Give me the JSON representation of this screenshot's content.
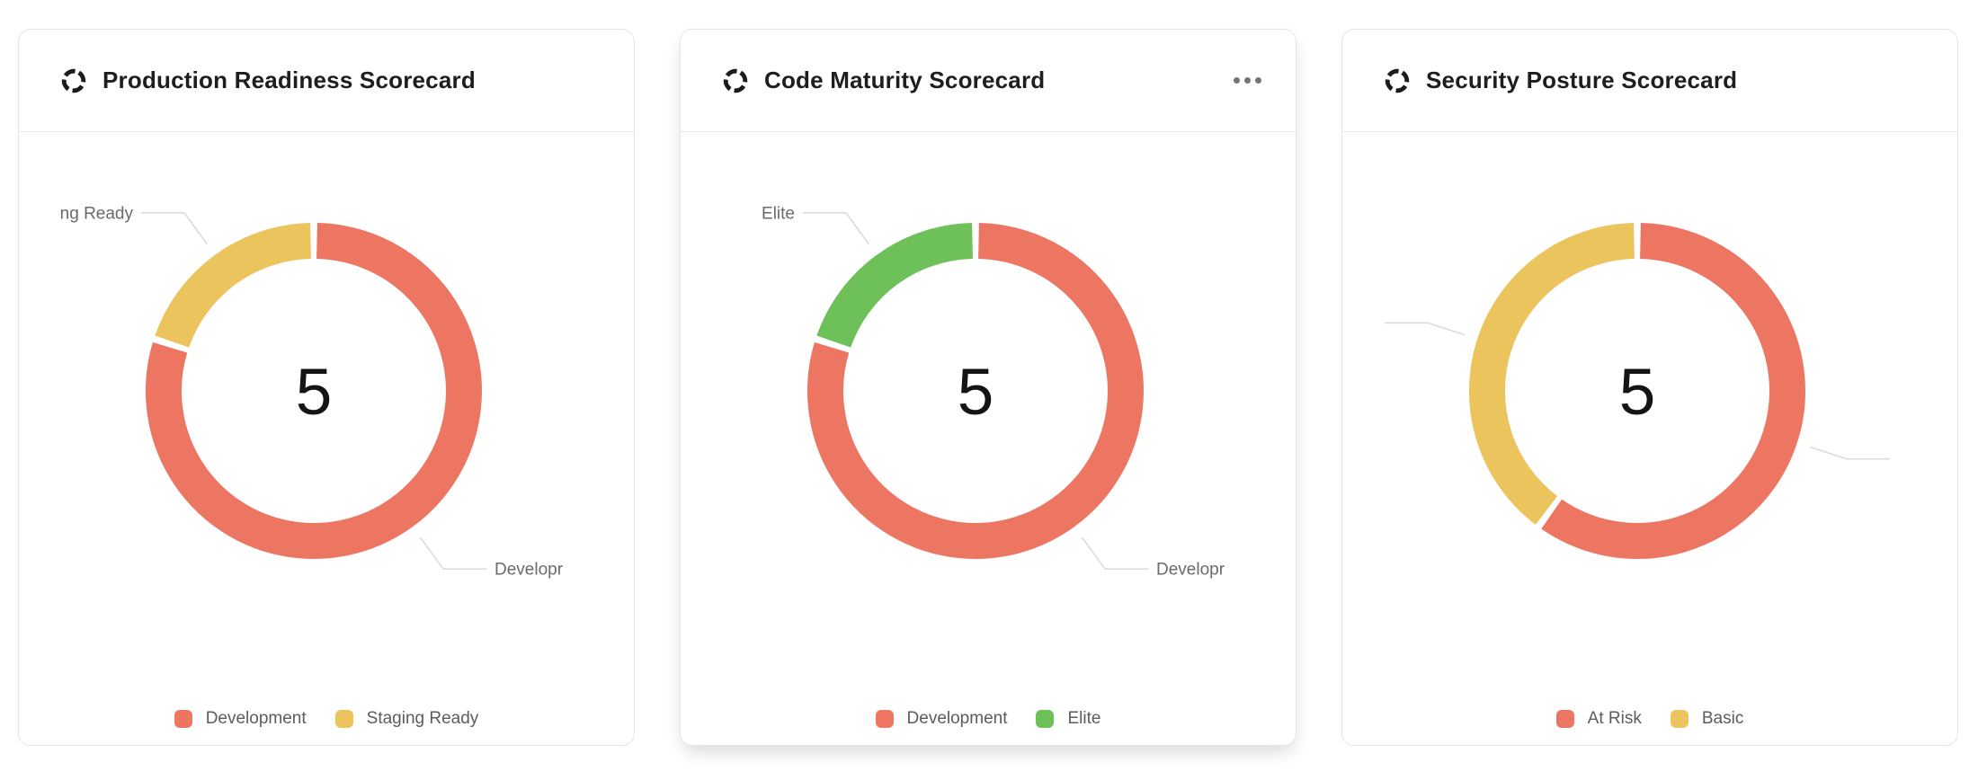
{
  "page": {
    "background": "#ffffff"
  },
  "colors": {
    "development_red": "#ED7663",
    "staging_yellow": "#ECC45D",
    "elite_green": "#6EC058",
    "at_risk_red": "#ED7663",
    "basic_yellow": "#ECC45D",
    "leader_line": "#DBDBDB",
    "title_text": "#1E1E1E",
    "legend_text": "#5C5C5C"
  },
  "cards": [
    {
      "title": "Production Readiness Scorecard",
      "icon": "scorecard-ring-icon",
      "has_menu": false,
      "callouts": [
        {
          "series": 1,
          "text": "ng Ready"
        },
        {
          "series": 0,
          "text": "Developr"
        }
      ]
    },
    {
      "title": "Code Maturity Scorecard",
      "icon": "scorecard-ring-icon",
      "has_menu": true,
      "menu_icon": "ellipsis-icon",
      "callouts": [
        {
          "series": 1,
          "text": "Elite"
        },
        {
          "series": 0,
          "text": "Developr"
        }
      ]
    },
    {
      "title": "Security Posture Scorecard",
      "icon": "scorecard-ring-icon",
      "has_menu": false,
      "callouts": [
        {
          "series": 1,
          "text": ""
        },
        {
          "series": 0,
          "text": ""
        }
      ]
    }
  ],
  "chart_data": [
    {
      "type": "pie",
      "variant": "donut",
      "title": "Production Readiness Scorecard",
      "center_label": "5",
      "total": 5,
      "legend_position": "bottom",
      "series": [
        {
          "name": "Development",
          "value": 4,
          "color": "#ED7663"
        },
        {
          "name": "Staging Ready",
          "value": 1,
          "color": "#ECC45D"
        }
      ]
    },
    {
      "type": "pie",
      "variant": "donut",
      "title": "Code Maturity Scorecard",
      "center_label": "5",
      "total": 5,
      "legend_position": "bottom",
      "series": [
        {
          "name": "Development",
          "value": 4,
          "color": "#ED7663"
        },
        {
          "name": "Elite",
          "value": 1,
          "color": "#6EC058"
        }
      ]
    },
    {
      "type": "pie",
      "variant": "donut",
      "title": "Security Posture Scorecard",
      "center_label": "5",
      "total": 5,
      "legend_position": "bottom",
      "series": [
        {
          "name": "At Risk",
          "value": 3,
          "color": "#ED7663"
        },
        {
          "name": "Basic",
          "value": 2,
          "color": "#ECC45D"
        }
      ]
    }
  ]
}
